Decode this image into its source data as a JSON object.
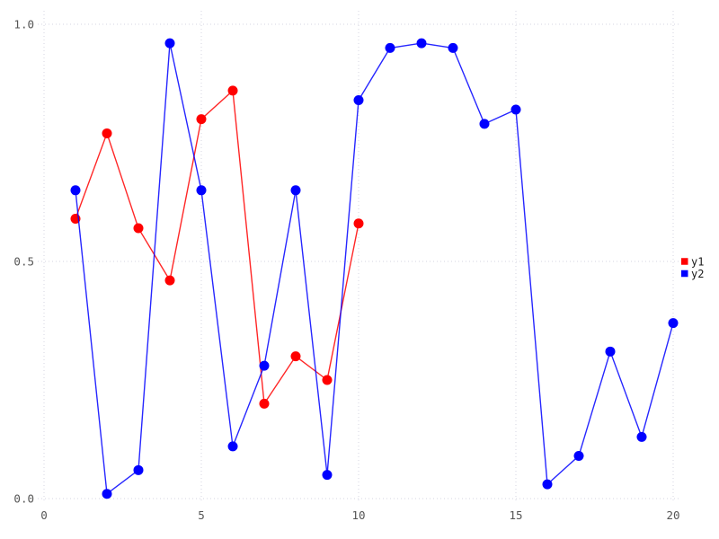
{
  "chart_data": {
    "type": "line",
    "title": "",
    "xlabel": "",
    "ylabel": "",
    "x_ticks": [
      0,
      5,
      10,
      15,
      20
    ],
    "y_ticks": [
      "0.0",
      "0.5",
      "1.0"
    ],
    "xlim": [
      -0.2,
      20.2
    ],
    "ylim": [
      0.0,
      1.03
    ],
    "grid": true,
    "grid_color": "#d6d6e0",
    "tick_label_color": "#555555",
    "legend": {
      "position": "right-center",
      "text_color": "#1a1a1a"
    },
    "series": [
      {
        "name": "y1",
        "color": "#ff0000",
        "x": [
          1,
          2,
          3,
          4,
          5,
          6,
          7,
          8,
          9,
          10
        ],
        "values": [
          0.59,
          0.77,
          0.57,
          0.46,
          0.8,
          0.86,
          0.2,
          0.3,
          0.25,
          0.58
        ]
      },
      {
        "name": "y2",
        "color": "#0000ff",
        "x": [
          1,
          2,
          3,
          4,
          5,
          6,
          7,
          8,
          9,
          10,
          11,
          12,
          13,
          14,
          15,
          16,
          17,
          18,
          19,
          20
        ],
        "values": [
          0.65,
          0.01,
          0.06,
          0.96,
          0.65,
          0.11,
          0.28,
          0.65,
          0.05,
          0.84,
          0.95,
          0.96,
          0.95,
          0.79,
          0.82,
          0.03,
          0.09,
          0.31,
          0.13,
          0.37
        ]
      }
    ]
  }
}
